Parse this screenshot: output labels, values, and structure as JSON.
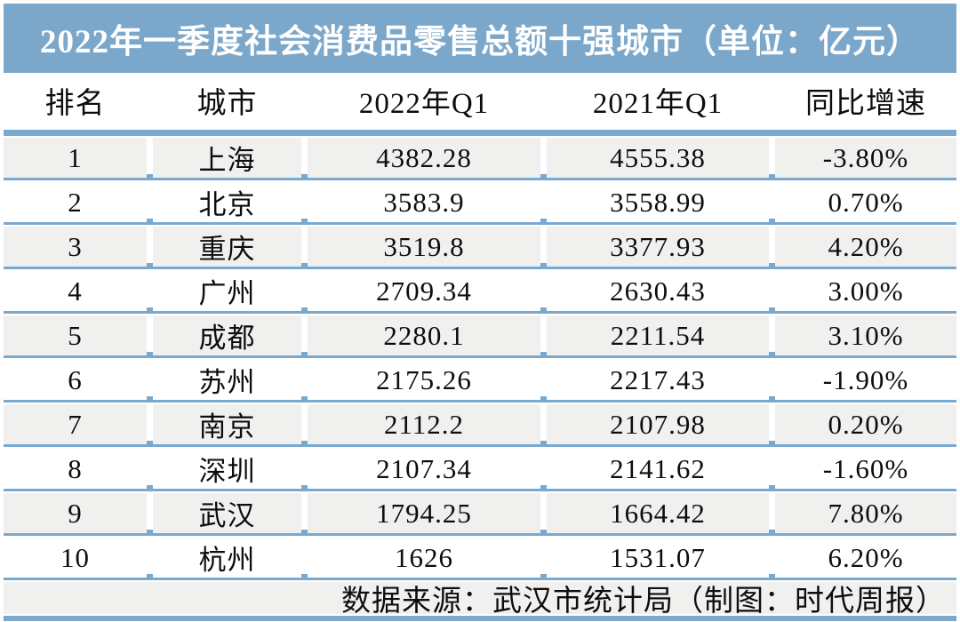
{
  "title": "2022年一季度社会消费品零售总额十强城市（单位：亿元）",
  "colors": {
    "accent_blue": "#7ba7ca",
    "separator_blue": "#79a9cf",
    "row_alt_gray": "#f0f0ef",
    "row_white": "#ffffff",
    "title_text": "#ffffff",
    "body_text": "#0d0d0d"
  },
  "chart_data": {
    "type": "table",
    "title": "2022年一季度社会消费品零售总额十强城市（单位：亿元）",
    "unit": "亿元",
    "columns": [
      "排名",
      "城市",
      "2022年Q1",
      "2021年Q1",
      "同比增速"
    ],
    "rows": [
      [
        "1",
        "上海",
        "4382.28",
        "4555.38",
        "-3.80%"
      ],
      [
        "2",
        "北京",
        "3583.9",
        "3558.99",
        "0.70%"
      ],
      [
        "3",
        "重庆",
        "3519.8",
        "3377.93",
        "4.20%"
      ],
      [
        "4",
        "广州",
        "2709.34",
        "2630.43",
        "3.00%"
      ],
      [
        "5",
        "成都",
        "2280.1",
        "2211.54",
        "3.10%"
      ],
      [
        "6",
        "苏州",
        "2175.26",
        "2217.43",
        "-1.90%"
      ],
      [
        "7",
        "南京",
        "2112.2",
        "2107.98",
        "0.20%"
      ],
      [
        "8",
        "深圳",
        "2107.34",
        "2141.62",
        "-1.60%"
      ],
      [
        "9",
        "武汉",
        "1794.25",
        "1664.42",
        "7.80%"
      ],
      [
        "10",
        "杭州",
        "1626",
        "1531.07",
        "6.20%"
      ]
    ],
    "source": "数据来源：武汉市统计局（制图：时代周报）",
    "layout": {
      "striped": true,
      "alt_rows": "odd ranks gray",
      "legend": "none",
      "grid": "horizontal blue separators"
    }
  }
}
